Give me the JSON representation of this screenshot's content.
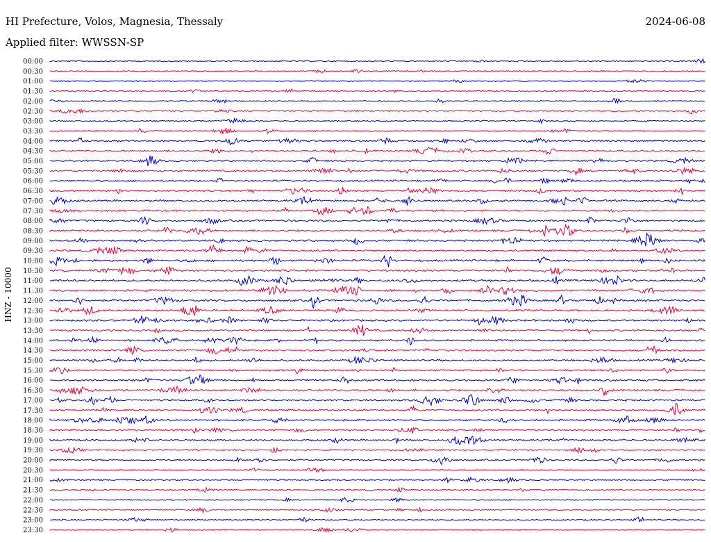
{
  "header": {
    "title": "HI Prefecture, Volos, Magnesia, Thessaly",
    "filter": "Applied filter: WWSSN-SP",
    "date": "2024-06-08"
  },
  "chart_data": {
    "type": "line",
    "title": "HI Prefecture, Volos, Magnesia, Thessaly",
    "subtitle": "Applied filter: WWSSN-SP",
    "ylabel": "HNZ - 10000",
    "xlabel": "",
    "rows": [
      "00:00",
      "00:30",
      "01:00",
      "01:30",
      "02:00",
      "02:30",
      "03:00",
      "03:30",
      "04:00",
      "04:30",
      "05:00",
      "05:30",
      "06:00",
      "06:30",
      "07:00",
      "07:30",
      "08:00",
      "08:30",
      "09:00",
      "09:30",
      "10:00",
      "10:30",
      "11:00",
      "11:30",
      "12:00",
      "12:30",
      "13:00",
      "13:30",
      "14:00",
      "14:30",
      "15:00",
      "15:30",
      "16:00",
      "16:30",
      "17:00",
      "17:30",
      "18:00",
      "18:30",
      "19:00",
      "19:30",
      "20:00",
      "20:30",
      "21:00",
      "21:30",
      "22:00",
      "22:30",
      "23:00",
      "23:30"
    ],
    "series_colors": [
      "#0000cc",
      "#e8003c"
    ],
    "activity": [
      0.15,
      0.2,
      0.15,
      0.2,
      0.25,
      0.3,
      0.2,
      0.3,
      0.6,
      0.6,
      0.6,
      0.65,
      0.6,
      0.65,
      0.7,
      0.65,
      0.7,
      0.75,
      0.7,
      0.6,
      0.8,
      0.75,
      0.8,
      0.75,
      0.8,
      0.7,
      0.7,
      0.6,
      0.65,
      0.6,
      0.65,
      0.6,
      0.65,
      0.7,
      0.7,
      0.6,
      0.7,
      0.6,
      0.6,
      0.4,
      0.5,
      0.2,
      0.3,
      0.25,
      0.2,
      0.25,
      0.3,
      0.25
    ],
    "grid": false
  }
}
